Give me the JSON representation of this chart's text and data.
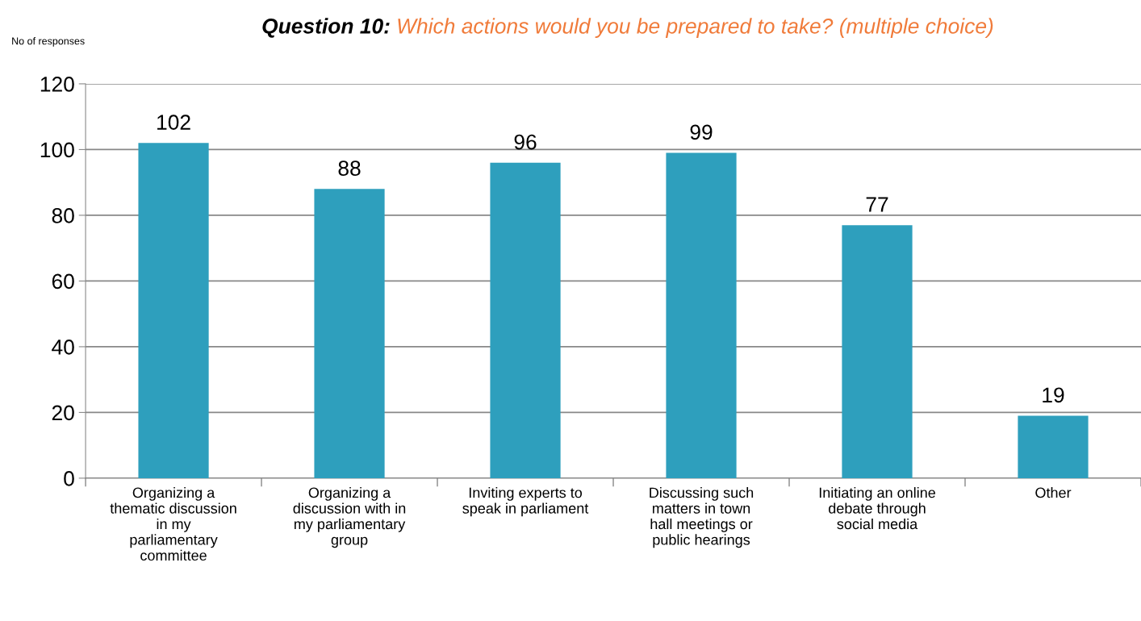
{
  "chart_data": {
    "type": "bar",
    "title": "Question 10: Which actions would you be prepared to take? (multiple choice)",
    "ylabel": "No of responses",
    "categories": [
      "Organizing a\nthematic discussion\nin my\nparliamentary\ncommittee",
      "Organizing a\ndiscussion with in\nmy parliamentary\ngroup",
      "Inviting experts to\nspeak in parliament",
      "Discussing such\nmatters in town\nhall meetings or\npublic hearings",
      "Initiating an online\ndebate through\nsocial media",
      "Other"
    ],
    "values": [
      102,
      88,
      96,
      99,
      77,
      19
    ],
    "color": "#2e9fbd",
    "ylim": [
      0,
      120
    ],
    "yticks": [
      0,
      20,
      40,
      60,
      80,
      100,
      120
    ],
    "grid": "y",
    "data_labels": true
  }
}
